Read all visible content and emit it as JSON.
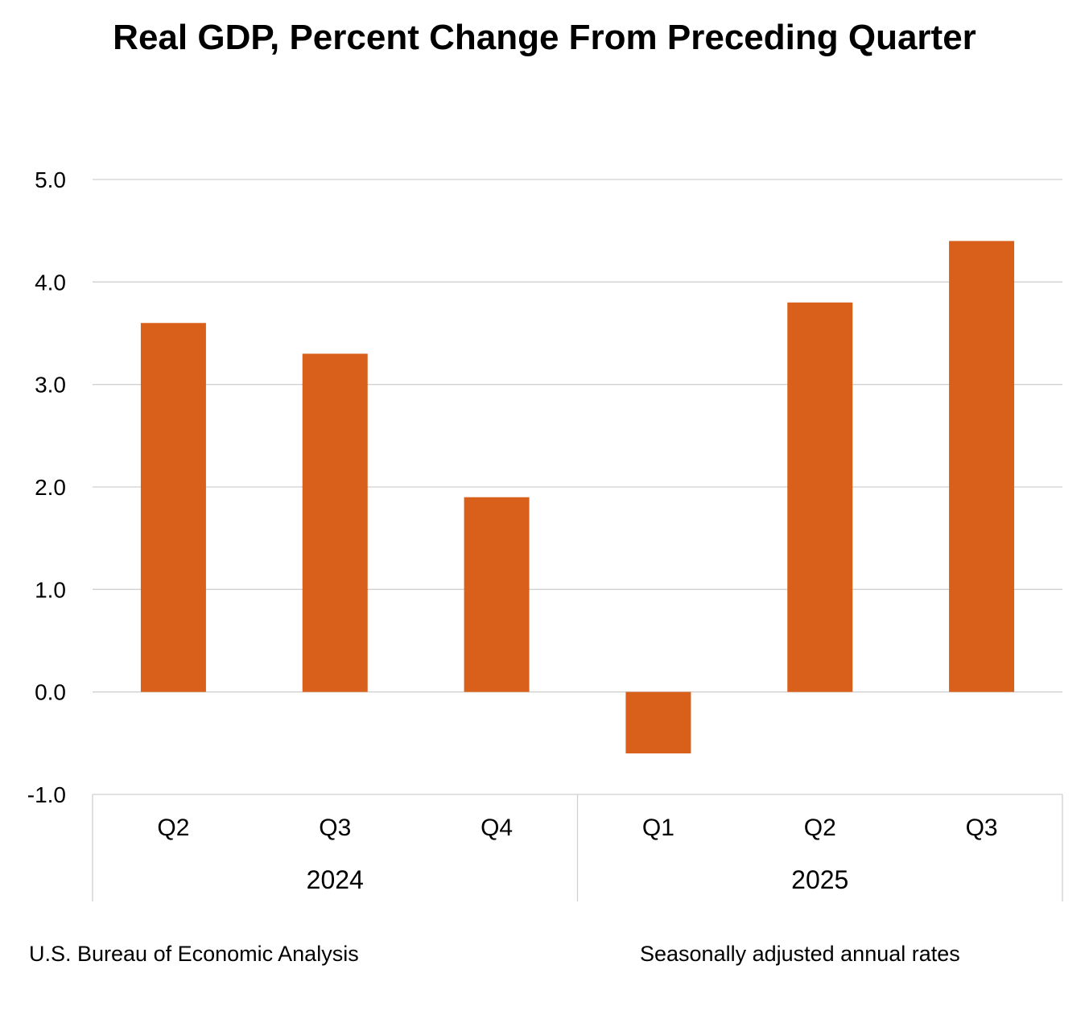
{
  "chart_data": {
    "type": "bar",
    "title": "Real GDP, Percent Change From Preceding Quarter",
    "categories": [
      "Q2",
      "Q3",
      "Q4",
      "Q1",
      "Q2",
      "Q3"
    ],
    "groups": [
      {
        "label": "2024",
        "categories": [
          "Q2",
          "Q3",
          "Q4"
        ]
      },
      {
        "label": "2025",
        "categories": [
          "Q1",
          "Q2",
          "Q3"
        ]
      }
    ],
    "values": [
      3.6,
      3.3,
      1.9,
      -0.6,
      3.8,
      4.4
    ],
    "ylim": [
      -1.0,
      5.0
    ],
    "yticks": [
      "5.0",
      "4.0",
      "3.0",
      "2.0",
      "1.0",
      "0.0",
      "-1.0"
    ],
    "xlabel": "",
    "ylabel": "",
    "grid": true,
    "bar_color": "#D9601A",
    "source": "U.S. Bureau of Economic Analysis",
    "note": "Seasonally adjusted annual rates"
  }
}
